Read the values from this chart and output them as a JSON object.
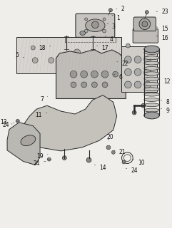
{
  "bg_color": "#f0eeeb",
  "line_color": "#2a2a2a",
  "label_color": "#111111",
  "part_labels": {
    "1": [
      155,
      302,
      162,
      297
    ],
    "2": [
      161,
      311,
      168,
      311
    ],
    "3": [
      148,
      290,
      155,
      285
    ],
    "4": [
      145,
      272,
      152,
      267
    ],
    "5": [
      32,
      240,
      22,
      244
    ],
    "6": [
      158,
      217,
      165,
      213
    ],
    "7": [
      63,
      185,
      57,
      181
    ],
    "8": [
      225,
      180,
      232,
      177
    ],
    "9": [
      225,
      168,
      232,
      165
    ],
    "10": [
      185,
      95,
      192,
      90
    ],
    "11": [
      62,
      162,
      55,
      158
    ],
    "12": [
      222,
      210,
      229,
      207
    ],
    "13": [
      15,
      145,
      5,
      148
    ],
    "14": [
      130,
      87,
      137,
      83
    ],
    "15": [
      218,
      285,
      226,
      282
    ],
    "16": [
      218,
      272,
      226,
      269
    ],
    "17": [
      133,
      258,
      140,
      255
    ],
    "18": [
      70,
      258,
      60,
      255
    ],
    "19": [
      66,
      103,
      57,
      99
    ],
    "20": [
      148,
      120,
      148,
      127
    ],
    "21": [
      158,
      108,
      165,
      105
    ],
    "22": [
      162,
      235,
      169,
      232
    ],
    "23": [
      218,
      307,
      226,
      307
    ],
    "24a": [
      175,
      82,
      182,
      79
    ],
    "24b": [
      18,
      148,
      8,
      144
    ],
    "24c": [
      63,
      93,
      52,
      89
    ]
  }
}
